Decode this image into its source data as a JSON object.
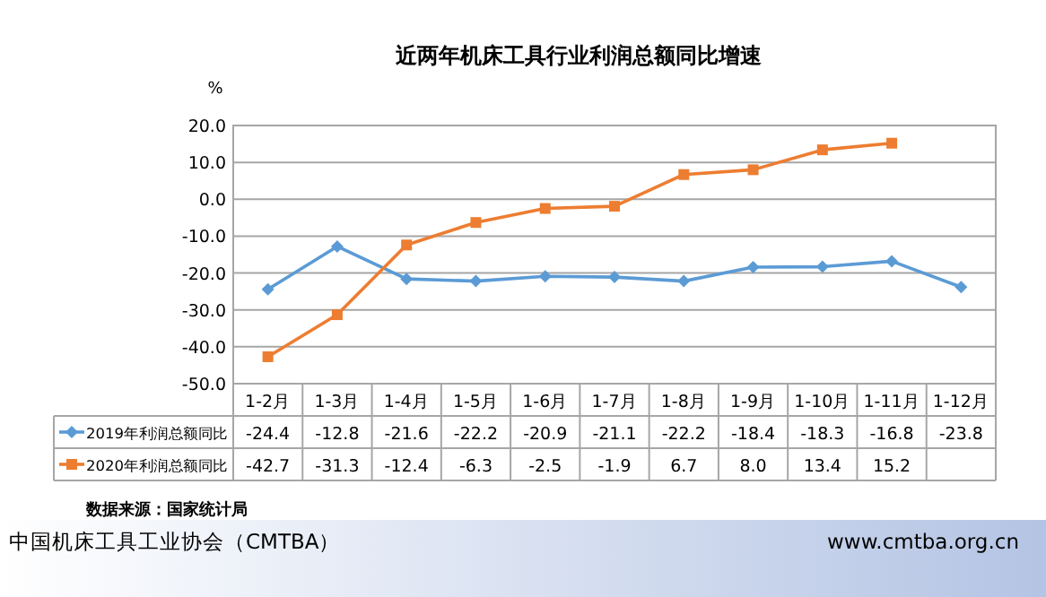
{
  "chart_data": {
    "type": "line",
    "title": "近两年机床工具行业利润总额同比增速",
    "ylabel": "%",
    "categories": [
      "1-2月",
      "1-3月",
      "1-4月",
      "1-5月",
      "1-6月",
      "1-7月",
      "1-8月",
      "1-9月",
      "1-10月",
      "1-11月",
      "1-12月"
    ],
    "series": [
      {
        "name": "2019年利润总额同比",
        "color": "#5b9bd5",
        "marker": "diamond",
        "values": [
          -24.4,
          -12.8,
          -21.6,
          -22.2,
          -20.9,
          -21.1,
          -22.2,
          -18.4,
          -18.3,
          -16.8,
          -23.8
        ],
        "value_labels": [
          "-24.4",
          "-12.8",
          "-21.6",
          "-22.2",
          "-20.9",
          "-21.1",
          "-22.2",
          "-18.4",
          "-18.3",
          "-16.8",
          "-23.8"
        ]
      },
      {
        "name": "2020年利润总额同比",
        "color": "#ed7d31",
        "marker": "square",
        "values": [
          -42.7,
          -31.3,
          -12.4,
          -6.3,
          -2.5,
          -1.9,
          6.7,
          8.0,
          13.4,
          15.2,
          null
        ],
        "value_labels": [
          "-42.7",
          "-31.3",
          "-12.4",
          "-6.3",
          "-2.5",
          "-1.9",
          "6.7",
          "8.0",
          "13.4",
          "15.2",
          null
        ]
      }
    ],
    "ylim": [
      -50,
      20
    ],
    "yticks": [
      {
        "value": 20,
        "label": "20.0"
      },
      {
        "value": 10,
        "label": "10.0"
      },
      {
        "value": 0,
        "label": "0.0"
      },
      {
        "value": -10,
        "label": "-10.0"
      },
      {
        "value": -20,
        "label": "-20.0"
      },
      {
        "value": -30,
        "label": "-30.0"
      },
      {
        "value": -40,
        "label": "-40.0"
      },
      {
        "value": -50,
        "label": "-50.0"
      }
    ],
    "grid": "y",
    "legend": "bottom",
    "annotations": [
      "数据来源：国家统计局",
      "中国机床工具工业协会（CMTBA）",
      "www.cmtba.org.cn"
    ]
  }
}
